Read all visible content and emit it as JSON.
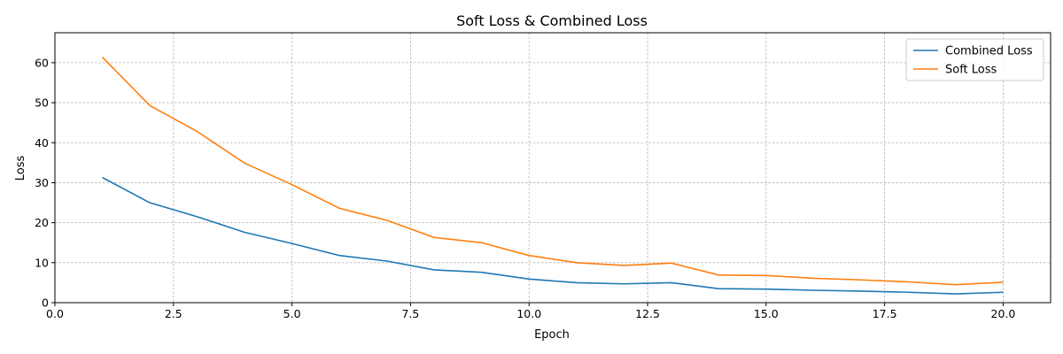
{
  "chart_data": {
    "type": "line",
    "title": "Soft Loss & Combined Loss",
    "xlabel": "Epoch",
    "ylabel": "Loss",
    "xlim": [
      0,
      21
    ],
    "ylim": [
      0,
      67.5
    ],
    "xticks": [
      0,
      2.5,
      5,
      7.5,
      10,
      12.5,
      15,
      17.5,
      20
    ],
    "xtick_labels": [
      "0.0",
      "2.5",
      "5.0",
      "7.5",
      "10.0",
      "12.5",
      "15.0",
      "17.5",
      "20.0"
    ],
    "yticks": [
      0,
      10,
      20,
      30,
      40,
      50,
      60
    ],
    "ytick_labels": [
      "0",
      "10",
      "20",
      "30",
      "40",
      "50",
      "60"
    ],
    "grid": true,
    "legend_position": "top-right",
    "x": [
      1,
      2,
      3,
      4,
      5,
      6,
      7,
      8,
      9,
      10,
      11,
      12,
      13,
      14,
      15,
      16,
      17,
      18,
      19,
      20
    ],
    "series": [
      {
        "name": "Combined Loss",
        "color": "#1f77b4",
        "values": [
          31.3,
          25.0,
          21.5,
          17.6,
          14.8,
          11.8,
          10.4,
          8.2,
          7.6,
          5.9,
          5.0,
          4.7,
          5.0,
          3.5,
          3.4,
          3.1,
          2.9,
          2.6,
          2.2,
          2.6
        ]
      },
      {
        "name": "Soft Loss",
        "color": "#ff7f0e",
        "values": [
          61.4,
          49.3,
          42.8,
          34.9,
          29.5,
          23.6,
          20.6,
          16.3,
          15.0,
          11.8,
          10.0,
          9.3,
          9.9,
          6.9,
          6.8,
          6.1,
          5.7,
          5.2,
          4.5,
          5.1
        ]
      }
    ]
  }
}
